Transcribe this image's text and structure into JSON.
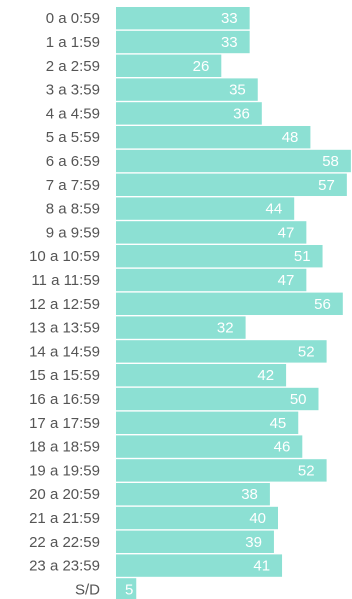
{
  "chart_data": {
    "type": "bar",
    "orientation": "horizontal",
    "categories": [
      "0 a 0:59",
      "1 a 1:59",
      "2 a 2:59",
      "3 a 3:59",
      "4 a 4:59",
      "5 a 5:59",
      "6 a 6:59",
      "7 a 7:59",
      "8 a 8:59",
      "9 a 9:59",
      "10 a 10:59",
      "11 a 11:59",
      "12 a 12:59",
      "13 a 13:59",
      "14 a 14:59",
      "15 a 15:59",
      "16 a 16:59",
      "17 a 17:59",
      "18 a 18:59",
      "19 a 19:59",
      "20 a 20:59",
      "21 a 21:59",
      "22 a 22:59",
      "23 a 23:59",
      "S/D"
    ],
    "values": [
      33,
      33,
      26,
      35,
      36,
      48,
      58,
      57,
      44,
      47,
      51,
      47,
      56,
      32,
      52,
      42,
      50,
      45,
      46,
      52,
      38,
      40,
      39,
      41,
      5
    ],
    "xlim": [
      0,
      60
    ],
    "grid": false,
    "bar_color": "#8ce0d3",
    "value_label_color": "#ffffff",
    "category_label_color": "#555555"
  }
}
